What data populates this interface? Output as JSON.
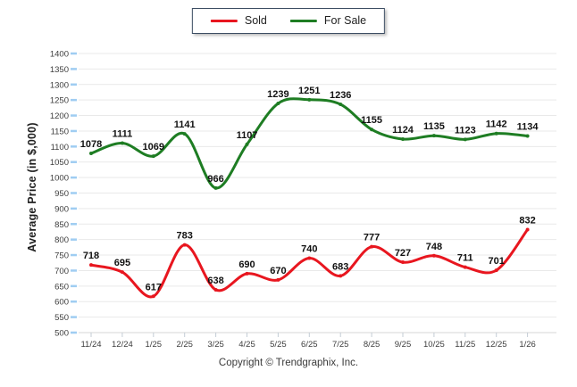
{
  "legend": {
    "items": [
      {
        "label": "Sold",
        "color": "#e8161f"
      },
      {
        "label": "For Sale",
        "color": "#1e7d23"
      }
    ]
  },
  "y_axis": {
    "title": "Average Price (in $,000)"
  },
  "footer": {
    "copyright": "Copyright © Trendgraphix, Inc."
  },
  "chart_data": {
    "type": "line",
    "title": "",
    "categories": [
      "11/24",
      "12/24",
      "1/25",
      "2/25",
      "3/25",
      "4/25",
      "5/25",
      "6/25",
      "7/25",
      "8/25",
      "9/25",
      "10/25",
      "11/25",
      "12/25",
      "1/26"
    ],
    "series": [
      {
        "name": "Sold",
        "color": "#e8161f",
        "values": [
          718,
          695,
          617,
          783,
          638,
          690,
          670,
          740,
          683,
          777,
          727,
          748,
          711,
          701,
          832
        ]
      },
      {
        "name": "For Sale",
        "color": "#1e7d23",
        "values": [
          1078,
          1111,
          1069,
          1141,
          966,
          1107,
          1239,
          1251,
          1236,
          1155,
          1124,
          1135,
          1123,
          1142,
          1134
        ]
      }
    ],
    "xlabel": "",
    "ylabel": "Average Price (in $,000)",
    "ylim": [
      500,
      1400
    ],
    "y_tick_step": 50,
    "grid": true,
    "smooth": true,
    "show_point_labels": true,
    "legend_position": "top-center",
    "colors": {
      "grid": "#e9e9e9",
      "axis_line": "#d4d4d4",
      "y_tick": "#9fcdf2",
      "x_tick": "#c4cdd6",
      "tick_text": "#3d3d3d",
      "data_label": "#111111",
      "legend_border": "#3c4d63"
    }
  }
}
